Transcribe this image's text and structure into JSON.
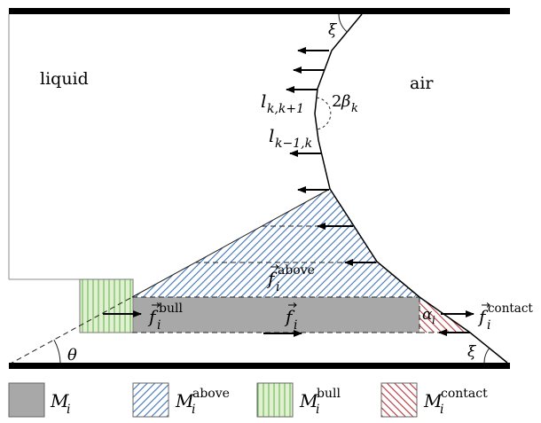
{
  "regions": {
    "liquid": "liquid",
    "air": "air"
  },
  "segments": [
    {
      "symbol": "l",
      "sub": "k,k+1"
    },
    {
      "symbol": "l",
      "sub": "k−1,k"
    }
  ],
  "angles": {
    "xi_top": "ξ",
    "xi_bottom": "ξ",
    "theta": "θ",
    "two_beta": {
      "coef": "2",
      "symbol": "β",
      "sub": "k"
    },
    "alpha": {
      "symbol": "α",
      "sub": "i"
    }
  },
  "forces": {
    "bull": {
      "symbol": "f",
      "sub": "i",
      "sup": "bull"
    },
    "slice": {
      "symbol": "f",
      "sub": "i"
    },
    "above": {
      "symbol": "f",
      "sub": "i",
      "sup": "above"
    },
    "contact": {
      "symbol": "f",
      "sub": "i",
      "sup": "contact"
    }
  },
  "legend": [
    {
      "symbol": "M",
      "sub": "i"
    },
    {
      "symbol": "M",
      "sub": "i",
      "sup": "above"
    },
    {
      "symbol": "M",
      "sub": "i",
      "sup": "bull"
    },
    {
      "symbol": "M",
      "sub": "i",
      "sup": "contact"
    }
  ],
  "colors": {
    "wall": "#000000",
    "interface": "#000000",
    "slice_fill": "#a8a8a8",
    "above_hatch": "#3f74b8",
    "bull_fill": "#dff1cf",
    "bull_stripe": "#63ad52",
    "contact_hatch": "#b8333a",
    "liquid_outline": "#8c8c8c"
  }
}
